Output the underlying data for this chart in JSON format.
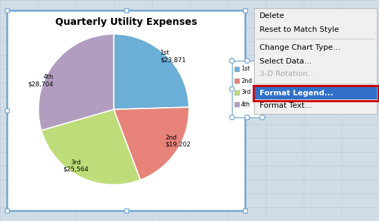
{
  "title": "Quarterly Utility Expenses",
  "slices": [
    {
      "label": "1st",
      "value": 23871,
      "color": "#6BAED6",
      "display": "1st\n$23,871"
    },
    {
      "label": "2nd",
      "value": 19202,
      "color": "#E8837A",
      "display": "2nd\n$19,202"
    },
    {
      "label": "3rd",
      "value": 25564,
      "color": "#BEDD7A",
      "display": "3rd\n$25,564"
    },
    {
      "label": "4th",
      "value": 28704,
      "color": "#B09DC0",
      "display": "4th\n$28,704"
    }
  ],
  "legend_entries": [
    "1st",
    "2nd",
    "3rd",
    "4th"
  ],
  "legend_colors": [
    "#6BAED6",
    "#E8837A",
    "#BEDD7A",
    "#B09DC0"
  ],
  "context_menu_items": [
    {
      "text": "Delete",
      "type": "normal"
    },
    {
      "text": "Reset to Match Style",
      "type": "normal"
    },
    {
      "text": "",
      "type": "separator"
    },
    {
      "text": "Change Chart Type...",
      "type": "normal"
    },
    {
      "text": "Select Data...",
      "type": "normal"
    },
    {
      "text": "3-D Rotation...",
      "type": "greyed"
    },
    {
      "text": "",
      "type": "separator"
    },
    {
      "text": "Format Legend...",
      "type": "highlighted"
    },
    {
      "text": "Format Text...",
      "type": "normal"
    }
  ],
  "bg_grid_color": "#D0DDE8",
  "grid_line_color": "#C0CDD8",
  "chart_border_color": "#7AAAD0",
  "chart_bg": "#FFFFFF",
  "legend_border_color": "#7AAAD0",
  "handle_color": "#7AAAD0",
  "menu_bg": "#F0F0F0",
  "menu_border": "#BBBBBB",
  "highlight_bg": "#3070C8",
  "highlight_border": "#CC0000",
  "greyed_color": "#AAAAAA",
  "sep_color": "#CCCCCC"
}
